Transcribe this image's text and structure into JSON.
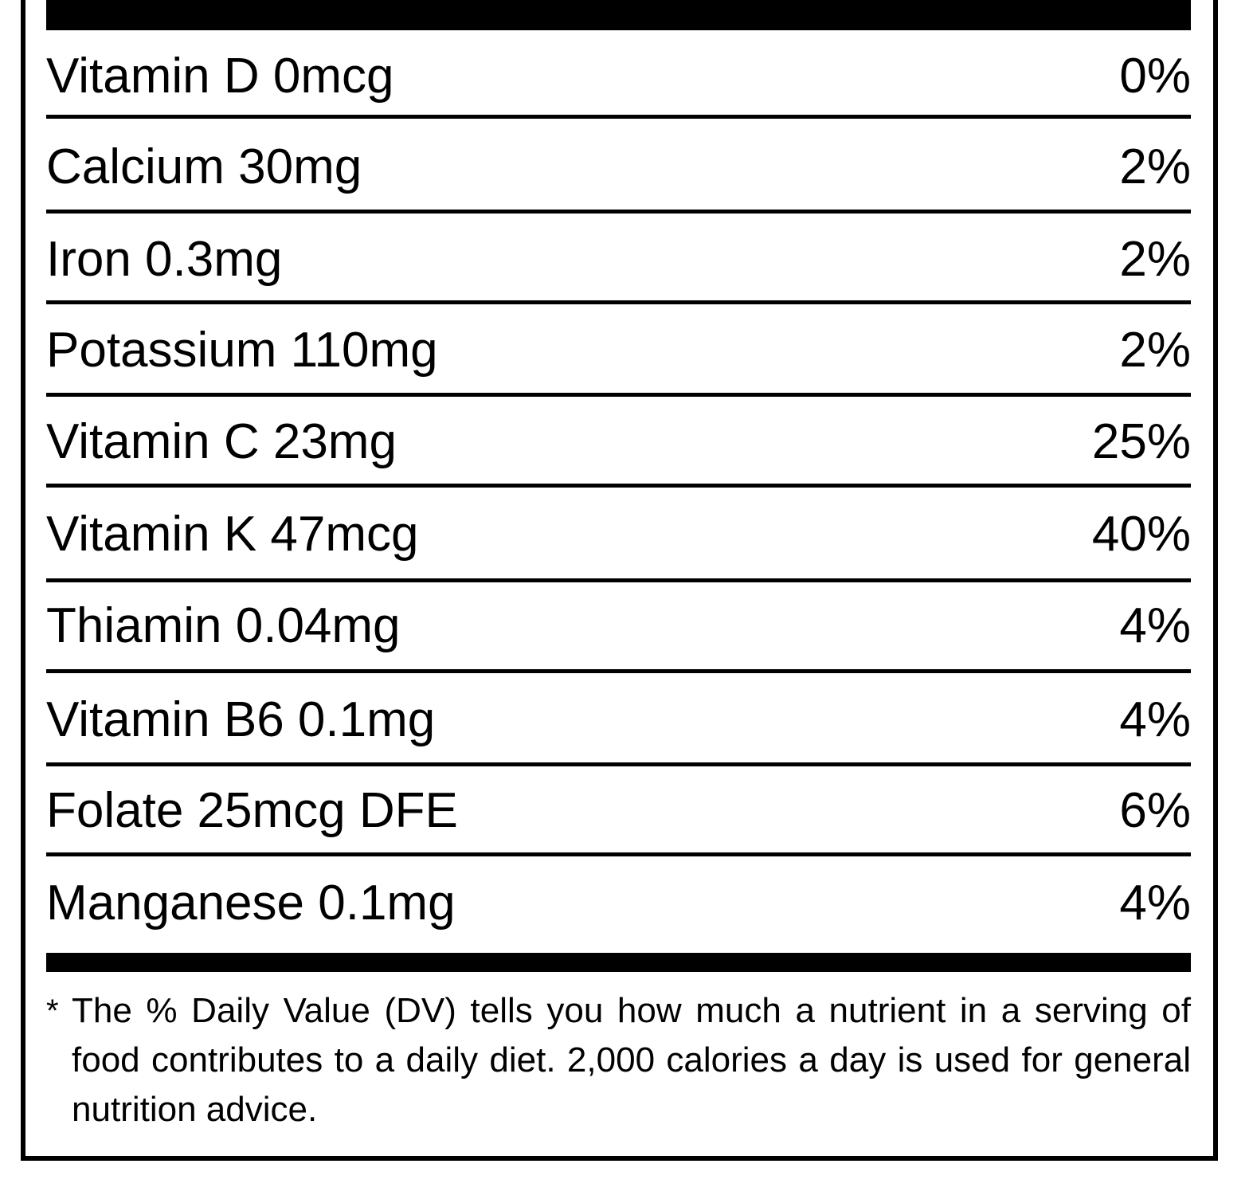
{
  "nutrients": [
    {
      "name": "Vitamin D 0mcg",
      "dv": "0%"
    },
    {
      "name": "Calcium 30mg",
      "dv": "2%"
    },
    {
      "name": "Iron 0.3mg",
      "dv": "2%"
    },
    {
      "name": "Potassium 110mg",
      "dv": "2%"
    },
    {
      "name": "Vitamin C 23mg",
      "dv": "25%"
    },
    {
      "name": "Vitamin K 47mcg",
      "dv": "40%"
    },
    {
      "name": "Thiamin 0.04mg",
      "dv": "4%"
    },
    {
      "name": "Vitamin B6 0.1mg",
      "dv": "4%"
    },
    {
      "name": "Folate 25mcg DFE",
      "dv": "6%"
    },
    {
      "name": "Manganese 0.1mg",
      "dv": "4%"
    }
  ],
  "footnote": {
    "marker": "*",
    "text": "The % Daily Value (DV) tells you how much a nutrient in a serving of food contributes to a daily diet. 2,000 calories a day is used for general nutrition advice."
  }
}
